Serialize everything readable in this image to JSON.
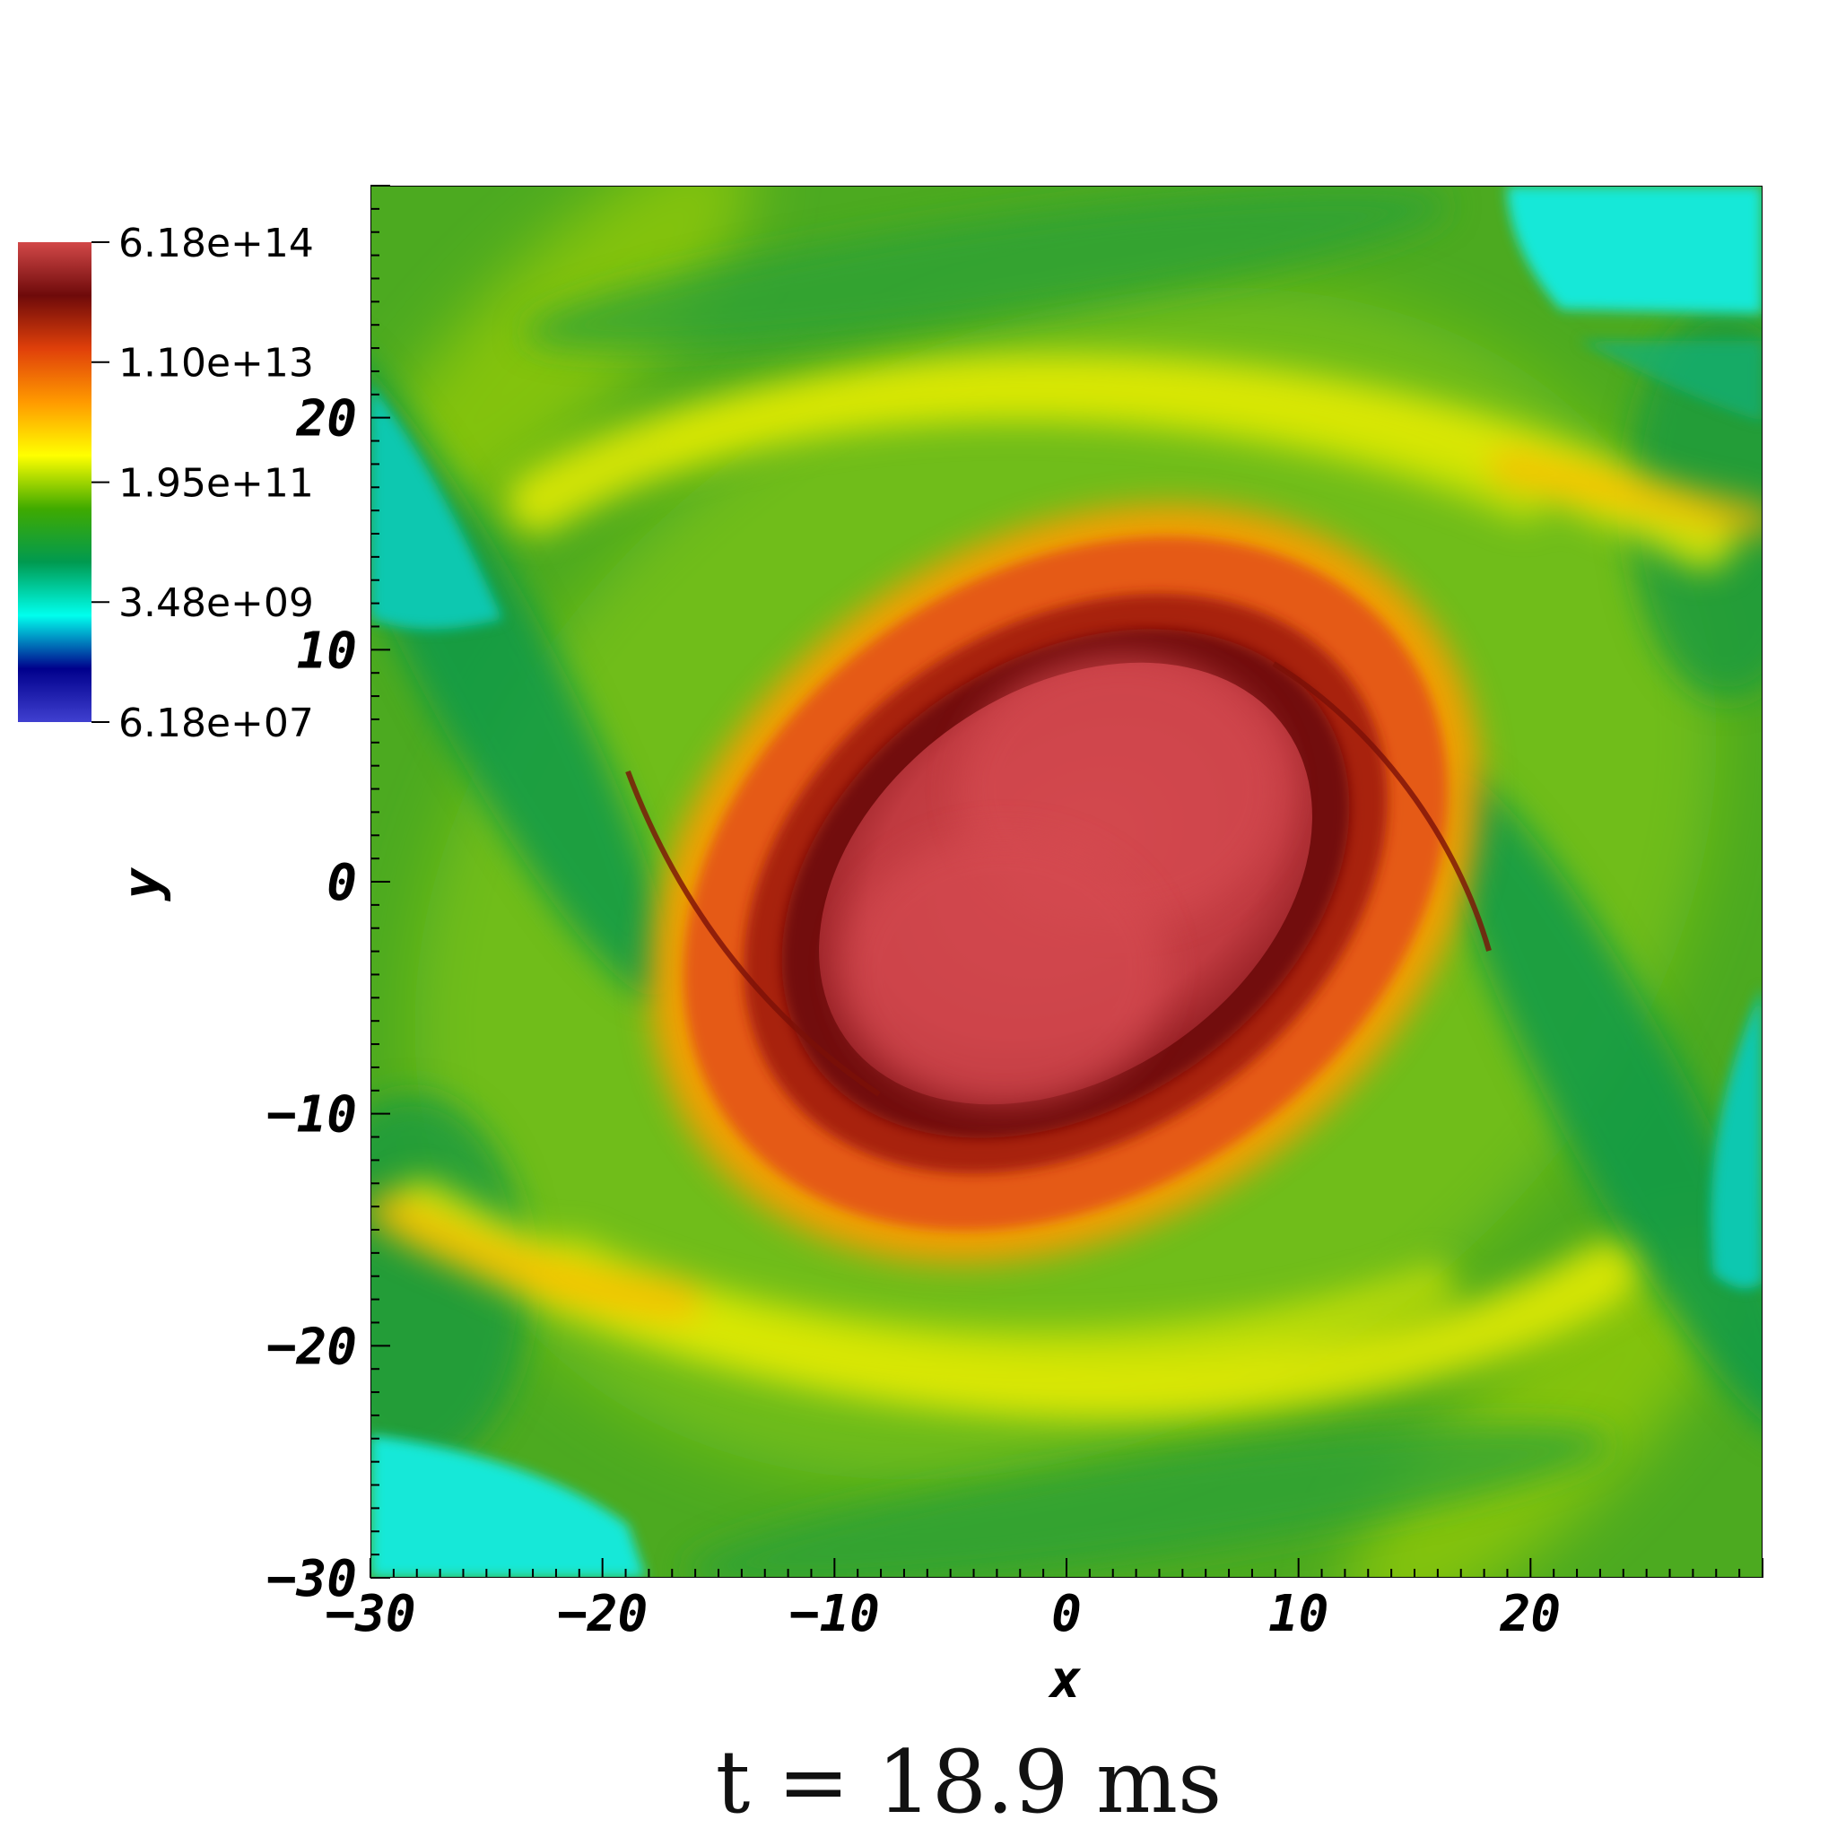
{
  "chart_data": {
    "type": "heatmap",
    "title": "",
    "xlabel": "x",
    "ylabel": "y",
    "xlim": [
      -30,
      30
    ],
    "ylim": [
      -30,
      30
    ],
    "x_ticks": [
      -30,
      -20,
      -10,
      0,
      10,
      20
    ],
    "y_ticks": [
      -30,
      -20,
      -10,
      0,
      10,
      20
    ],
    "x_tick_labels": [
      "−30",
      "−20",
      "−10",
      "0",
      "10",
      "20"
    ],
    "y_tick_labels": [
      "−30",
      "−20",
      "−10",
      "0",
      "10",
      "20"
    ],
    "colorbar": {
      "scale": "log",
      "range": [
        61800000.0,
        618000000000000.0
      ],
      "placement": "top-left",
      "ticks": [
        618000000000000.0,
        11000000000000.0,
        195000000000.0,
        3480000000.0,
        61800000.0
      ],
      "tick_labels": [
        "6.18e+14",
        "1.10e+13",
        "1.95e+11",
        "3.48e+09",
        "6.18e+07"
      ],
      "colors_top_to_bottom": [
        "#d24848",
        "#6e0a0a",
        "#e0400a",
        "#ff9a00",
        "#ffff00",
        "#3faa00",
        "#009a50",
        "#00ffee",
        "#00008c",
        "#4040d0"
      ]
    },
    "background_color": "#4caa20",
    "features": [
      {
        "name": "core",
        "peak": 618000000000000.0,
        "color": "#c74046"
      },
      {
        "name": "dense-ring",
        "level": 11000000000000.0,
        "color": "#e05a10"
      },
      {
        "name": "low-density-regions",
        "level": 3480000000.0,
        "color": "#18e8d8"
      }
    ],
    "annotation": "t = 18.9 ms"
  }
}
